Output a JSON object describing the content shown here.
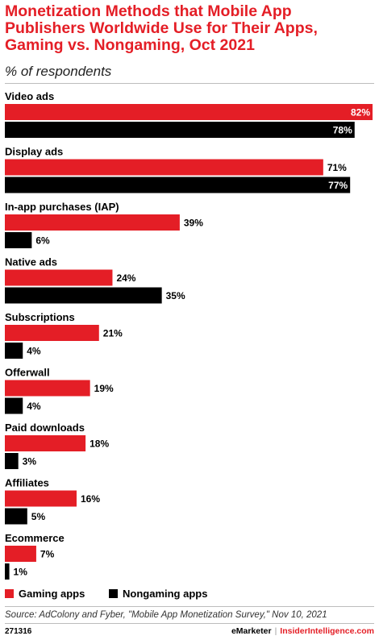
{
  "title": "Monetization Methods that Mobile App Publishers Worldwide Use for Their Apps, Gaming vs. Nongaming, Oct 2021",
  "subtitle": "% of respondents",
  "legend": {
    "gaming": "Gaming apps",
    "nongaming": "Nongaming apps"
  },
  "source": "Source: AdColony and Fyber, \"Mobile App Monetization Survey,\" Nov 10, 2021",
  "footer": {
    "id": "271316",
    "brand1": "eMarketer",
    "brand2": "InsiderIntelligence.com"
  },
  "colors": {
    "gaming": "#e41e26",
    "nongaming": "#000000",
    "title": "#e41e26"
  },
  "chart_data": {
    "type": "bar",
    "orientation": "horizontal",
    "categories": [
      "Video ads",
      "Display ads",
      "In-app purchases (IAP)",
      "Native ads",
      "Subscriptions",
      "Offerwall",
      "Paid downloads",
      "Affiliates",
      "Ecommerce"
    ],
    "series": [
      {
        "name": "Gaming apps",
        "color": "#e41e26",
        "values": [
          82,
          71,
          39,
          24,
          21,
          19,
          18,
          16,
          7
        ]
      },
      {
        "name": "Nongaming apps",
        "color": "#000000",
        "values": [
          78,
          77,
          6,
          35,
          4,
          4,
          3,
          5,
          1
        ]
      }
    ],
    "value_suffix": "%",
    "xlim": [
      0,
      82
    ],
    "grid": false,
    "legend_position": "bottom-left"
  }
}
